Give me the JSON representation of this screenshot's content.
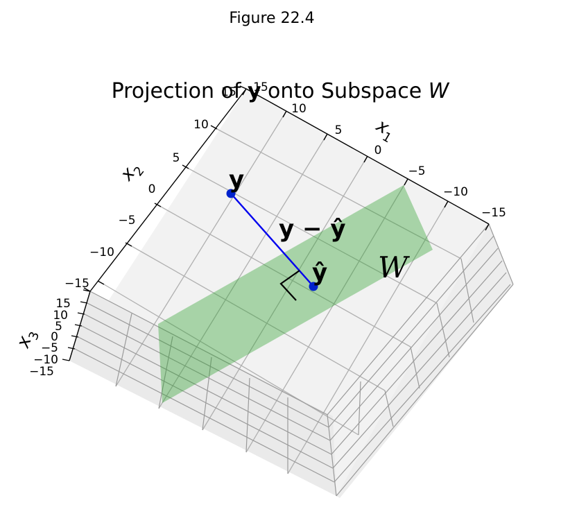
{
  "suptitle": "Figure 22.4",
  "title": "Projection of y onto Subspace W",
  "title_parts": {
    "before": "Projection of ",
    "vec": "y",
    "after": " onto Subspace ",
    "space": "W"
  },
  "axes": {
    "x1": {
      "label": "x",
      "sub": "1",
      "ticks": [
        "15",
        "10",
        "5",
        "0",
        "−5",
        "−10",
        "−15"
      ]
    },
    "x2": {
      "label": "x",
      "sub": "2",
      "ticks": [
        "15",
        "10",
        "5",
        "0",
        "−5",
        "−10",
        "−15"
      ]
    },
    "x3": {
      "label": "x",
      "sub": "3",
      "ticks": [
        "15",
        "10",
        "5",
        "0",
        "−5",
        "−10",
        "−15"
      ]
    }
  },
  "labels": {
    "y": "y",
    "y_hat": "ŷ",
    "residual": "y − ŷ",
    "subspace": "W"
  },
  "colors": {
    "plane": "#2ca02c",
    "vector": "#0000ee",
    "point": "#0022cc",
    "pane": "#f2f2f2"
  }
}
